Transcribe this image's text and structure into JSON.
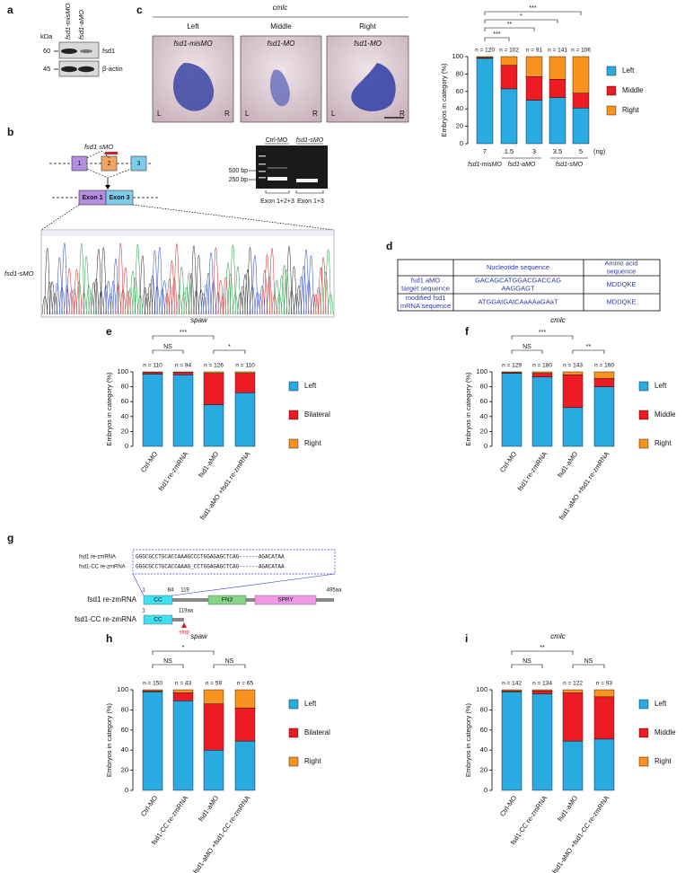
{
  "panel_labels": {
    "a": "a",
    "b": "b",
    "c": "c",
    "d": "d",
    "e": "e",
    "f": "f",
    "g": "g",
    "h": "h",
    "i": "i"
  },
  "blot": {
    "unit": "kDa",
    "lanes": [
      "fsd1-misMO",
      "fsd1-aMO"
    ],
    "markers": [
      "60",
      "45"
    ],
    "bands": [
      "fsd1",
      "β-actin"
    ]
  },
  "splice": {
    "morpholino": "fsd1 sMO",
    "exons": [
      "1",
      "2",
      "3"
    ],
    "spliced_exons": [
      "Exon 1",
      "Exon 3"
    ],
    "chromatogram_label": "fsd1-sMO"
  },
  "gel": {
    "lanes": [
      "Ctrl-MO",
      "fsd1-sMO"
    ],
    "markers": [
      "500 bp",
      "250 bp"
    ],
    "products": [
      "Exon 1+2+3",
      "Exon 1+3"
    ]
  },
  "images": {
    "marker": "cmlc",
    "columns": [
      "Left",
      "Middle",
      "Right"
    ],
    "labels": [
      "fsd1-misMO",
      "fsd1-MO",
      "fsd1-MO"
    ],
    "side_left": "L",
    "side_right": "R"
  },
  "table": {
    "header": {
      "nucleotide": [
        "Nucleotide sequence"
      ],
      "amino_acid": [
        "Amino acid",
        "sequence"
      ]
    },
    "rows": [
      {
        "label": [
          "fsd1 aMO",
          "target sequence"
        ],
        "nucleotide": [
          "GACAGCATGGACGACCAG",
          "AAGGAGT"
        ],
        "amino_acid": [
          "MDDQKE"
        ]
      },
      {
        "label": [
          "modified fsd1",
          "mRNA sequence"
        ],
        "nucleotide": [
          "ATGGAtGAtCAaAAaGAaT"
        ],
        "amino_acid": [
          "MDDQKE"
        ]
      }
    ]
  },
  "constructs": {
    "alignment": [
      {
        "name": "fsd1 re-zmRNA",
        "sequence": "GGGCGCCTGCACCAAAGCCCTGGAGAGCTCAG------AGACATAA"
      },
      {
        "name": "fsd1-CC re-zmRNA",
        "sequence": "GGGCGCCTGCACCAAAG_CCTGGAGAGCTCAG------AGACATAA"
      }
    ],
    "full": {
      "name": "fsd1 re-zmRNA",
      "positions": [
        "1",
        "84",
        "119",
        "495aa"
      ],
      "domains": [
        "CC",
        "FN3",
        "SPRY"
      ]
    },
    "truncated": {
      "name": "fsd1-CC re-zmRNA",
      "positions": [
        "1",
        "119aa"
      ],
      "domain": "CC",
      "stop": "stop"
    }
  },
  "chart_data": [
    {
      "type": "bar",
      "stacked": true,
      "ylabel": "Embryos in category (%)",
      "categories": [
        "7",
        "1.5",
        "3",
        "3.5",
        "5"
      ],
      "group_labels": [
        "fsd1-misMO",
        "fsd1-aMO",
        "fsd1-sMO"
      ],
      "x_unit": "(ng)",
      "n_labels": [
        "n = 120",
        "n = 102",
        "n = 91",
        "n = 141",
        "n = 106"
      ],
      "series": [
        {
          "name": "Left",
          "color": "#29abe2",
          "values": [
            98,
            63,
            50,
            53,
            41
          ]
        },
        {
          "name": "Middle",
          "color": "#ed1c24",
          "values": [
            1,
            27,
            27,
            21,
            17
          ]
        },
        {
          "name": "Right",
          "color": "#f7931e",
          "values": [
            1,
            10,
            23,
            26,
            42
          ]
        }
      ],
      "ylim": [
        0,
        100
      ],
      "yticks": [
        0,
        20,
        40,
        60,
        80,
        100
      ],
      "legend": "right",
      "significance": [
        {
          "from": 0,
          "to": 1,
          "label": "***"
        },
        {
          "from": 0,
          "to": 2,
          "label": "**"
        },
        {
          "from": 0,
          "to": 3,
          "label": "*"
        },
        {
          "from": 0,
          "to": 4,
          "label": "***"
        }
      ]
    },
    {
      "type": "bar",
      "stacked": true,
      "title": "spaw",
      "ylabel": "Embryos in category (%)",
      "categories": [
        "Ctrl-MO",
        "fsd1 re-zmRNA",
        "fsd1-aMO",
        "fsd1-aMO +fsd1 re-zmRNA"
      ],
      "n_labels": [
        "n = 110",
        "n = 94",
        "n = 126",
        "n = 110"
      ],
      "series": [
        {
          "name": "Left",
          "color": "#29abe2",
          "values": [
            97,
            96,
            56,
            72
          ]
        },
        {
          "name": "Bilateral",
          "color": "#ed1c24",
          "values": [
            2,
            3,
            42,
            26
          ]
        },
        {
          "name": "Right",
          "color": "#f7931e",
          "values": [
            1,
            1,
            2,
            2
          ]
        }
      ],
      "ylim": [
        0,
        100
      ],
      "yticks": [
        0,
        20,
        40,
        60,
        80,
        100
      ],
      "legend": "right",
      "significance": [
        {
          "from": 0,
          "to": 1,
          "label": "NS"
        },
        {
          "from": 0,
          "to": 2,
          "label": "***"
        },
        {
          "from": 2,
          "to": 3,
          "label": "*"
        }
      ]
    },
    {
      "type": "bar",
      "stacked": true,
      "title": "cmlc",
      "ylabel": "Embryos in category (%)",
      "categories": [
        "Ctrl-MO",
        "fsd1 re-zmRNA",
        "fsd1-aMO",
        "fsd1-aMO +fsd1 re-zmRNA"
      ],
      "n_labels": [
        "n = 129",
        "n = 180",
        "n = 143",
        "n = 160"
      ],
      "series": [
        {
          "name": "Left",
          "color": "#29abe2",
          "values": [
            98,
            93,
            52,
            80
          ]
        },
        {
          "name": "Middle",
          "color": "#ed1c24",
          "values": [
            1,
            5,
            44,
            11
          ]
        },
        {
          "name": "Right",
          "color": "#f7931e",
          "values": [
            1,
            2,
            4,
            9
          ]
        }
      ],
      "ylim": [
        0,
        100
      ],
      "yticks": [
        0,
        20,
        40,
        60,
        80,
        100
      ],
      "legend": "right",
      "significance": [
        {
          "from": 0,
          "to": 1,
          "label": "NS"
        },
        {
          "from": 0,
          "to": 2,
          "label": "***"
        },
        {
          "from": 2,
          "to": 3,
          "label": "**"
        }
      ]
    },
    {
      "type": "bar",
      "stacked": true,
      "title": "spaw",
      "ylabel": "Embryos in category (%)",
      "categories": [
        "Ctrl-MO",
        "fsd1-CC re-zmRNA",
        "fsd1-aMO",
        "fsd1-aMO +fsd1-CC re-zmRNA"
      ],
      "n_labels": [
        "n = 150",
        "n = 43",
        "n = 59",
        "n = 65"
      ],
      "series": [
        {
          "name": "Left",
          "color": "#29abe2",
          "values": [
            98,
            89,
            40,
            49
          ]
        },
        {
          "name": "Bilateral",
          "color": "#ed1c24",
          "values": [
            1,
            8,
            46,
            33
          ]
        },
        {
          "name": "Right",
          "color": "#f7931e",
          "values": [
            1,
            3,
            14,
            18
          ]
        }
      ],
      "ylim": [
        0,
        100
      ],
      "yticks": [
        0,
        20,
        40,
        60,
        80,
        100
      ],
      "legend": "right",
      "significance": [
        {
          "from": 0,
          "to": 1,
          "label": "NS"
        },
        {
          "from": 0,
          "to": 2,
          "label": "*"
        },
        {
          "from": 2,
          "to": 3,
          "label": "NS"
        }
      ]
    },
    {
      "type": "bar",
      "stacked": true,
      "title": "cmlc",
      "ylabel": "Embryos in category (%)",
      "categories": [
        "Ctrl-MO",
        "fsd1-CC re-zmRNA",
        "fsd1-aMO",
        "fsd1-aMO +fsd1-CC re-zmRNA"
      ],
      "n_labels": [
        "n = 142",
        "n = 134",
        "n = 122",
        "n = 93"
      ],
      "series": [
        {
          "name": "Left",
          "color": "#29abe2",
          "values": [
            98,
            96,
            49,
            51
          ]
        },
        {
          "name": "Middle",
          "color": "#ed1c24",
          "values": [
            1,
            3,
            48,
            42
          ]
        },
        {
          "name": "Right",
          "color": "#f7931e",
          "values": [
            1,
            1,
            3,
            7
          ]
        }
      ],
      "ylim": [
        0,
        100
      ],
      "yticks": [
        0,
        20,
        40,
        60,
        80,
        100
      ],
      "legend": "right",
      "significance": [
        {
          "from": 0,
          "to": 1,
          "label": "NS"
        },
        {
          "from": 0,
          "to": 2,
          "label": "**"
        },
        {
          "from": 2,
          "to": 3,
          "label": "NS"
        }
      ]
    }
  ]
}
